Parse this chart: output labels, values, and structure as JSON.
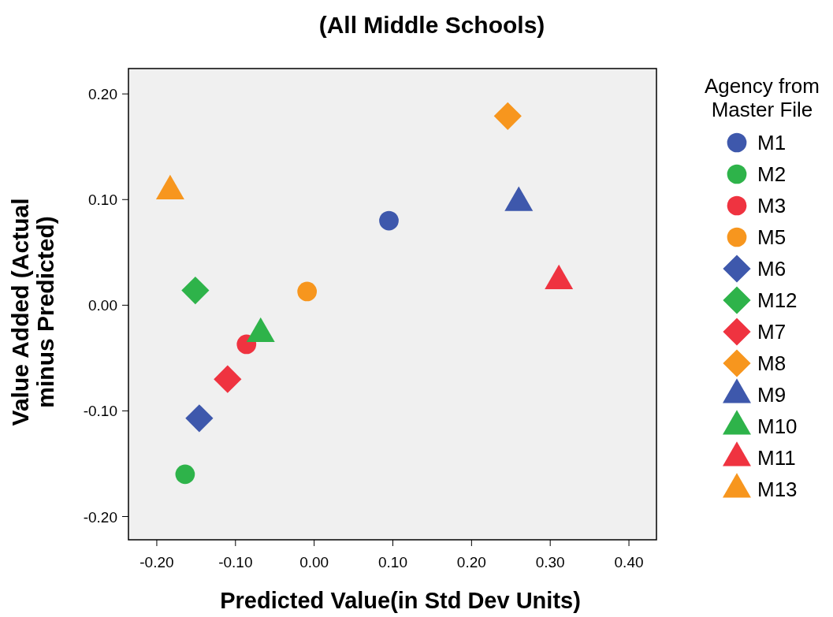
{
  "chart_data": {
    "type": "scatter",
    "title": "(All Middle Schools)",
    "xlabel": "Predicted Value(in Std Dev Units)",
    "ylabel": "Value Added (Actual minus Predicted)",
    "legend_title": "Agency from Master File",
    "legend": "right",
    "grid": false,
    "xlim": [
      -0.236,
      0.435
    ],
    "ylim": [
      -0.222,
      0.224
    ],
    "xticks": [
      {
        "value": -0.2,
        "label": "-0.20"
      },
      {
        "value": -0.1,
        "label": "-0.10"
      },
      {
        "value": 0,
        "label": "0.00"
      },
      {
        "value": 0.1,
        "label": "0.10"
      },
      {
        "value": 0.2,
        "label": "0.20"
      },
      {
        "value": 0.3,
        "label": "0.30"
      },
      {
        "value": 0.4,
        "label": "0.40"
      }
    ],
    "yticks": [
      {
        "value": -0.2,
        "label": "-0.20"
      },
      {
        "value": -0.1,
        "label": "-0.10"
      },
      {
        "value": 0,
        "label": "0.00"
      },
      {
        "value": 0.1,
        "label": "0.10"
      },
      {
        "value": 0.2,
        "label": "0.20"
      }
    ],
    "series": [
      {
        "name": "M1",
        "color": "#3e58ac",
        "marker": "circle",
        "x": [
          0.095
        ],
        "values": [
          0.08
        ]
      },
      {
        "name": "M2",
        "color": "#2eb34a",
        "marker": "circle",
        "x": [
          -0.164
        ],
        "values": [
          -0.16
        ]
      },
      {
        "name": "M3",
        "color": "#ef3340",
        "marker": "circle",
        "x": [
          -0.086
        ],
        "values": [
          -0.037
        ]
      },
      {
        "name": "M5",
        "color": "#f7961e",
        "marker": "circle",
        "x": [
          -0.009
        ],
        "values": [
          0.013
        ]
      },
      {
        "name": "M6",
        "color": "#3e58ac",
        "marker": "diamond",
        "x": [
          -0.146
        ],
        "values": [
          -0.107
        ]
      },
      {
        "name": "M12",
        "color": "#2eb34a",
        "marker": "diamond",
        "x": [
          -0.151
        ],
        "values": [
          0.014
        ]
      },
      {
        "name": "M7",
        "color": "#ef3340",
        "marker": "diamond",
        "x": [
          -0.11
        ],
        "values": [
          -0.07
        ]
      },
      {
        "name": "M8",
        "color": "#f7961e",
        "marker": "diamond",
        "x": [
          0.246
        ],
        "values": [
          0.179
        ]
      },
      {
        "name": "M9",
        "color": "#3e58ac",
        "marker": "triangle",
        "x": [
          0.26
        ],
        "values": [
          0.097
        ]
      },
      {
        "name": "M10",
        "color": "#2eb34a",
        "marker": "triangle",
        "x": [
          -0.068
        ],
        "values": [
          -0.027
        ]
      },
      {
        "name": "M11",
        "color": "#ef3340",
        "marker": "triangle",
        "x": [
          0.311
        ],
        "values": [
          0.023
        ]
      },
      {
        "name": "M13",
        "color": "#f7961e",
        "marker": "triangle",
        "x": [
          -0.183
        ],
        "values": [
          0.108
        ]
      }
    ]
  }
}
